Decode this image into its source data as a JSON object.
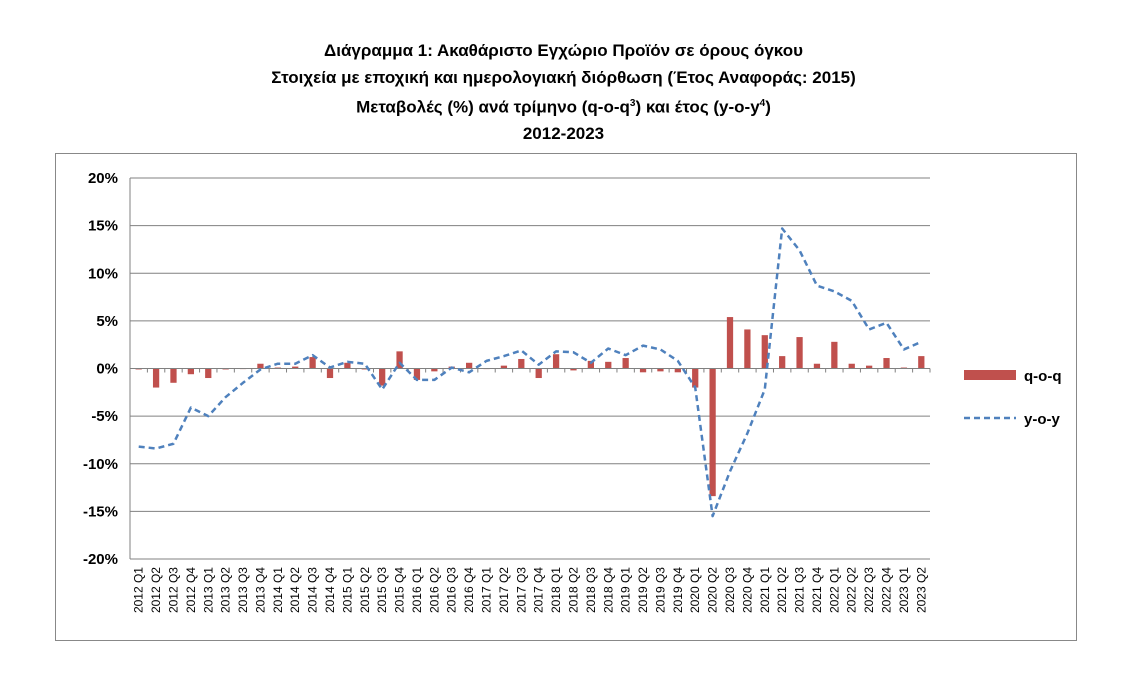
{
  "title": {
    "line1": "Διάγραμμα 1: Ακαθάριστο Εγχώριο Προϊόν σε όρους όγκου",
    "line2": "Στοιχεία με εποχική και ημερολογιακή διόρθωση (Έτος Αναφοράς: 2015)",
    "line3_pre": "Μεταβολές (%) ανά τρίμηνο (q-o-q",
    "line3_sup1": "3",
    "line3_mid": ") και έτος (y-o-y",
    "line3_sup2": "4",
    "line3_post": ")",
    "line4": "2012-2023"
  },
  "colors": {
    "bar": "#c0504d",
    "line": "#4f81bd",
    "grid": "#808080"
  },
  "chart_data": {
    "type": "bar",
    "categories": [
      "2012 Q1",
      "2012 Q2",
      "2012 Q3",
      "2012 Q4",
      "2013 Q1",
      "2013 Q2",
      "2013 Q3",
      "2013 Q4",
      "2014 Q1",
      "2014 Q2",
      "2014 Q3",
      "2014 Q4",
      "2015 Q1",
      "2015 Q2",
      "2015 Q3",
      "2015 Q4",
      "2016 Q1",
      "2016 Q2",
      "2016 Q3",
      "2016 Q4",
      "2017 Q1",
      "2017 Q2",
      "2017 Q3",
      "2017 Q4",
      "2018 Q1",
      "2018 Q2",
      "2018 Q3",
      "2018 Q4",
      "2019 Q1",
      "2019 Q2",
      "2019 Q3",
      "2019 Q4",
      "2020 Q1",
      "2020 Q2",
      "2020 Q3",
      "2020 Q4",
      "2021 Q1",
      "2021 Q2",
      "2021 Q3",
      "2021 Q4",
      "2022 Q1",
      "2022 Q2",
      "2022 Q3",
      "2022 Q4",
      "2023 Q1",
      "2023 Q2"
    ],
    "series": [
      {
        "name": "q-o-q",
        "type": "bar",
        "values": [
          -0.1,
          -2.0,
          -1.5,
          -0.6,
          -1.0,
          -0.1,
          0.0,
          0.5,
          0.1,
          0.2,
          1.2,
          -1.0,
          0.6,
          -0.1,
          -1.8,
          1.8,
          -1.2,
          -0.3,
          0.2,
          0.6,
          0.0,
          0.3,
          1.0,
          -1.0,
          1.5,
          -0.2,
          0.8,
          0.7,
          1.1,
          -0.4,
          -0.3,
          -0.4,
          -2.0,
          -13.4,
          5.4,
          4.1,
          3.5,
          1.3,
          3.3,
          0.5,
          2.8,
          0.5,
          0.3,
          1.1,
          0.1,
          1.3
        ]
      },
      {
        "name": "y-o-y",
        "type": "line",
        "values": [
          -8.2,
          -8.4,
          -7.9,
          -4.1,
          -5.0,
          -3.0,
          -1.5,
          -0.1,
          0.5,
          0.5,
          1.4,
          0.1,
          0.7,
          0.5,
          -2.2,
          0.6,
          -1.2,
          -1.2,
          0.1,
          -0.4,
          0.8,
          1.3,
          1.9,
          0.4,
          1.8,
          1.7,
          0.6,
          2.1,
          1.4,
          2.4,
          2.0,
          0.8,
          -2.0,
          -15.5,
          -10.8,
          -6.8,
          -2.2,
          14.7,
          12.4,
          8.7,
          8.1,
          7.1,
          4.1,
          4.8,
          2.0,
          2.8
        ]
      }
    ],
    "ylim": [
      -20,
      20
    ],
    "yticks": [
      20,
      15,
      10,
      5,
      0,
      -5,
      -10,
      -15,
      -20
    ],
    "ytick_labels": [
      "20%",
      "15%",
      "10%",
      "5%",
      "0%",
      "-5%",
      "-10%",
      "-15%",
      "-20%"
    ],
    "grid": true,
    "legend": {
      "position": "right",
      "entries": [
        "q-o-q",
        "y-o-y"
      ]
    },
    "xlabel": "",
    "ylabel": ""
  }
}
